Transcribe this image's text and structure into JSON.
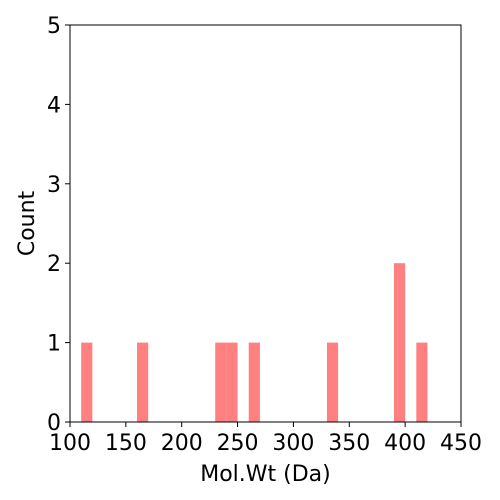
{
  "chart_data": {
    "type": "histogram",
    "title": "",
    "xlabel": "Mol.Wt (Da)",
    "ylabel": "Count",
    "xlim": [
      100,
      450
    ],
    "ylim": [
      0,
      5
    ],
    "xticks": [
      "100",
      "150",
      "200",
      "250",
      "300",
      "350",
      "400",
      "450"
    ],
    "yticks": [
      "0",
      "1",
      "2",
      "3",
      "4",
      "5"
    ],
    "bin_width": 10,
    "bins": [
      {
        "x0": 110,
        "x1": 120,
        "count": 1
      },
      {
        "x0": 160,
        "x1": 170,
        "count": 1
      },
      {
        "x0": 230,
        "x1": 240,
        "count": 1
      },
      {
        "x0": 240,
        "x1": 250,
        "count": 1
      },
      {
        "x0": 260,
        "x1": 270,
        "count": 1
      },
      {
        "x0": 330,
        "x1": 340,
        "count": 1
      },
      {
        "x0": 390,
        "x1": 400,
        "count": 2
      },
      {
        "x0": 410,
        "x1": 420,
        "count": 1
      }
    ],
    "bar_color": "#ff8080",
    "grid": false,
    "legend": "none"
  }
}
